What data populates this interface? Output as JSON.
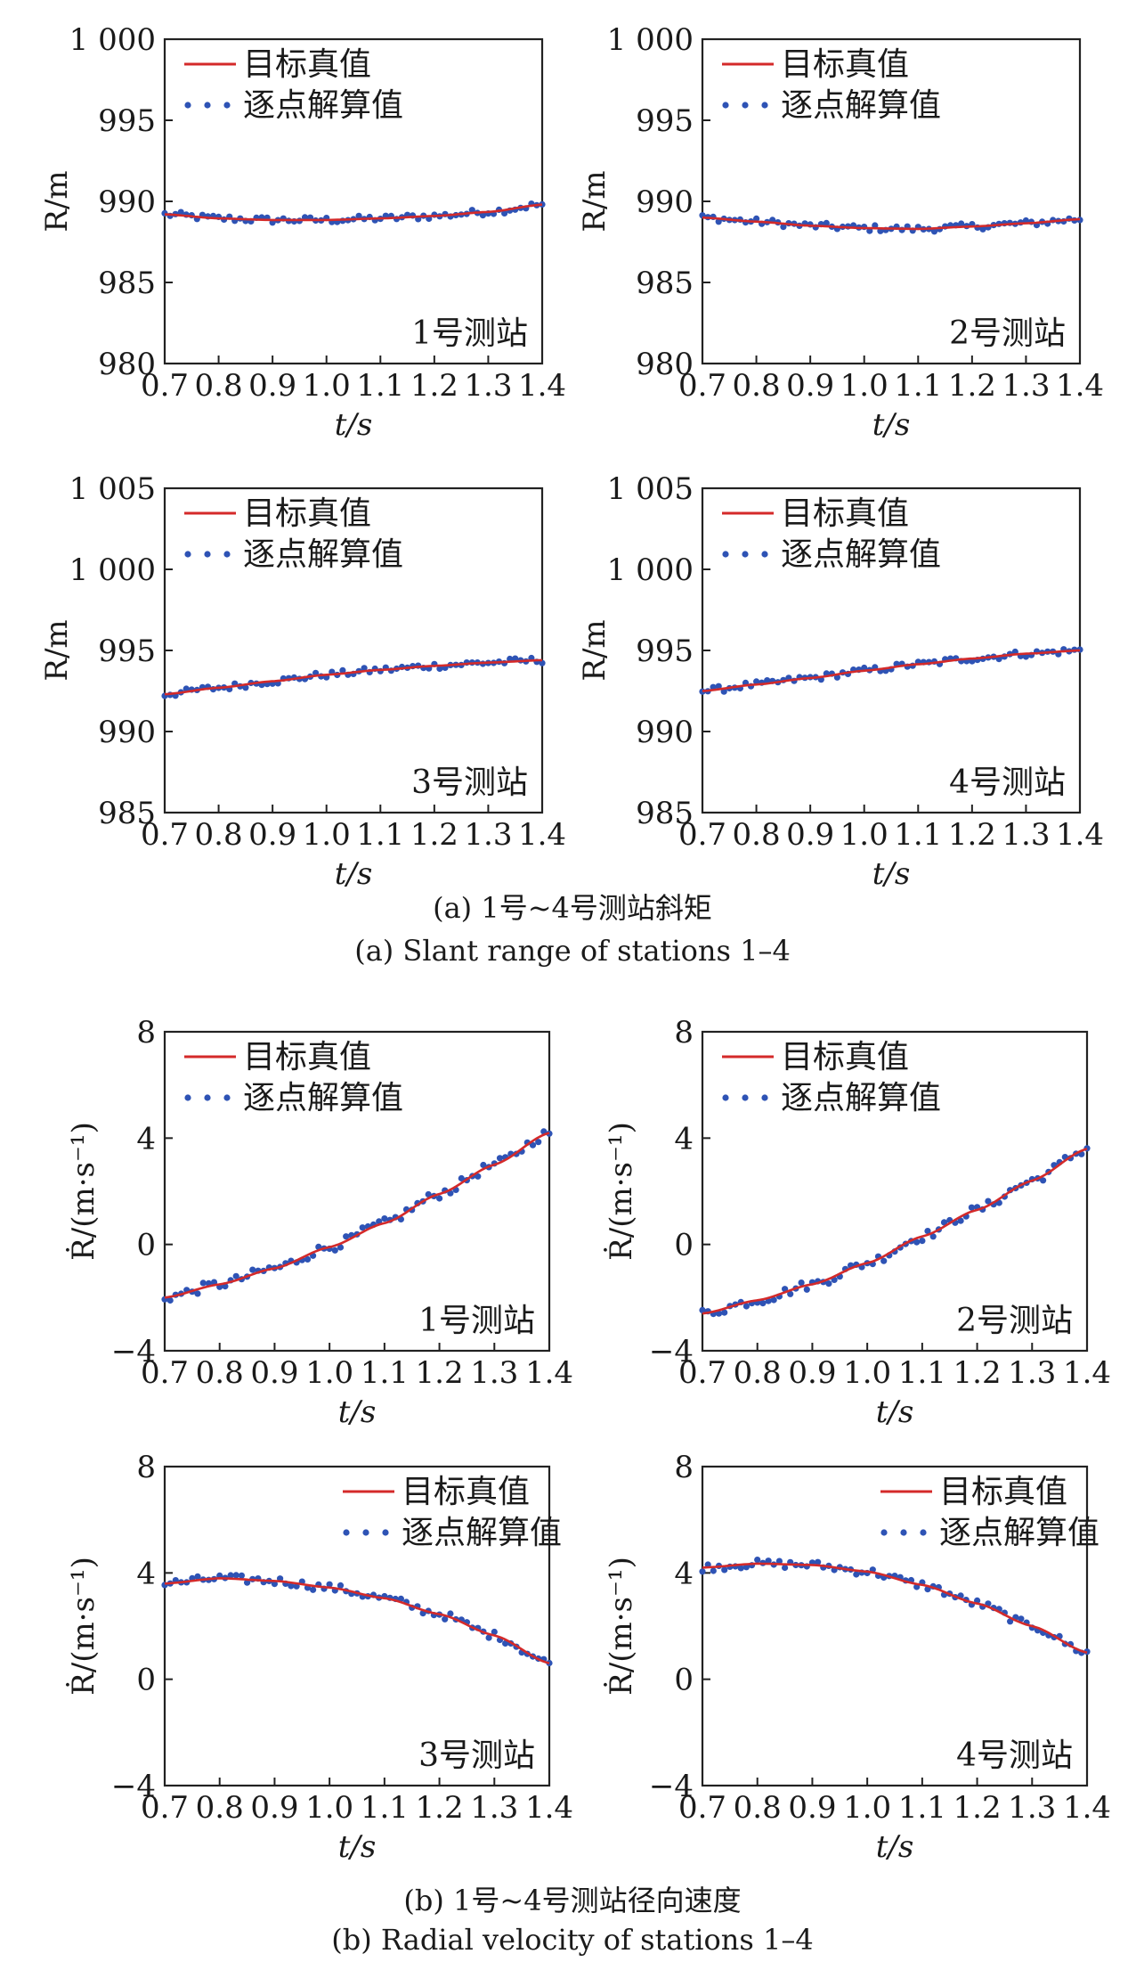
{
  "chart_data": [
    {
      "type": "line",
      "id": "range-s1",
      "station_label": "1号测站",
      "xlabel": "t/s",
      "ylabel": "R/m",
      "xlim": [
        0.7,
        1.4
      ],
      "ylim": [
        980,
        1000
      ],
      "x_ticks": [
        0.7,
        0.8,
        0.9,
        1.0,
        1.1,
        1.2,
        1.3,
        1.4
      ],
      "x_tick_labels": [
        "0.7",
        "0.8",
        "0.9",
        "1.0",
        "1.1",
        "1.2",
        "1.3",
        "1.4"
      ],
      "y_ticks": [
        980,
        985,
        990,
        995,
        1000
      ],
      "y_tick_labels": [
        "980",
        "985",
        "990",
        "995",
        "1 000"
      ],
      "legend": "top-left",
      "grid": false,
      "series": [
        {
          "name": "目标真值",
          "style": "line",
          "color": "#d42a2a",
          "x": [
            0.7,
            0.8,
            0.9,
            1.0,
            1.1,
            1.2,
            1.3,
            1.4
          ],
          "y": [
            989.2,
            988.95,
            988.85,
            988.85,
            988.95,
            989.1,
            989.35,
            989.8
          ]
        },
        {
          "name": "逐点解算值",
          "style": "dots",
          "color": "#2e53b5",
          "x": [
            0.7,
            0.8,
            0.9,
            1.0,
            1.1,
            1.2,
            1.3,
            1.4
          ],
          "y": [
            989.2,
            988.95,
            988.85,
            988.85,
            988.95,
            989.1,
            989.35,
            989.8
          ],
          "noise": 0.2
        }
      ]
    },
    {
      "type": "line",
      "id": "range-s2",
      "station_label": "2号测站",
      "xlabel": "t/s",
      "ylabel": "R/m",
      "xlim": [
        0.7,
        1.4
      ],
      "ylim": [
        980,
        1000
      ],
      "x_ticks": [
        0.7,
        0.8,
        0.9,
        1.0,
        1.1,
        1.2,
        1.3,
        1.4
      ],
      "x_tick_labels": [
        "0.7",
        "0.8",
        "0.9",
        "1.0",
        "1.1",
        "1.2",
        "1.3",
        "1.4"
      ],
      "y_ticks": [
        980,
        985,
        990,
        995,
        1000
      ],
      "y_tick_labels": [
        "980",
        "985",
        "990",
        "995",
        "1 000"
      ],
      "legend": "top-left",
      "grid": false,
      "series": [
        {
          "name": "目标真值",
          "style": "line",
          "color": "#d42a2a",
          "x": [
            0.7,
            0.8,
            0.9,
            1.0,
            1.1,
            1.2,
            1.3,
            1.4
          ],
          "y": [
            989.0,
            988.75,
            988.5,
            988.35,
            988.3,
            988.45,
            988.65,
            988.9
          ]
        },
        {
          "name": "逐点解算值",
          "style": "dots",
          "color": "#2e53b5",
          "x": [
            0.7,
            0.8,
            0.9,
            1.0,
            1.1,
            1.2,
            1.3,
            1.4
          ],
          "y": [
            989.0,
            988.75,
            988.5,
            988.35,
            988.3,
            988.45,
            988.65,
            988.9
          ],
          "noise": 0.2
        }
      ]
    },
    {
      "type": "line",
      "id": "range-s3",
      "station_label": "3号测站",
      "xlabel": "t/s",
      "ylabel": "R/m",
      "xlim": [
        0.7,
        1.4
      ],
      "ylim": [
        985,
        1005
      ],
      "x_ticks": [
        0.7,
        0.8,
        0.9,
        1.0,
        1.1,
        1.2,
        1.3,
        1.4
      ],
      "x_tick_labels": [
        "0.7",
        "0.8",
        "0.9",
        "1.0",
        "1.1",
        "1.2",
        "1.3",
        "1.4"
      ],
      "y_ticks": [
        985,
        990,
        995,
        1000,
        1005
      ],
      "y_tick_labels": [
        "985",
        "990",
        "995",
        "1 000",
        "1 005"
      ],
      "legend": "top-left",
      "grid": false,
      "series": [
        {
          "name": "目标真值",
          "style": "line",
          "color": "#d42a2a",
          "x": [
            0.7,
            0.8,
            0.9,
            1.0,
            1.1,
            1.2,
            1.3,
            1.4
          ],
          "y": [
            992.3,
            992.7,
            993.1,
            993.5,
            993.8,
            994.05,
            994.25,
            994.4
          ]
        },
        {
          "name": "逐点解算值",
          "style": "dots",
          "color": "#2e53b5",
          "x": [
            0.7,
            0.8,
            0.9,
            1.0,
            1.1,
            1.2,
            1.3,
            1.4
          ],
          "y": [
            992.3,
            992.7,
            993.1,
            993.5,
            993.8,
            994.05,
            994.25,
            994.4
          ],
          "noise": 0.2
        }
      ]
    },
    {
      "type": "line",
      "id": "range-s4",
      "station_label": "4号测站",
      "xlabel": "t/s",
      "ylabel": "R/m",
      "xlim": [
        0.7,
        1.4
      ],
      "ylim": [
        985,
        1005
      ],
      "x_ticks": [
        0.7,
        0.8,
        0.9,
        1.0,
        1.1,
        1.2,
        1.3,
        1.4
      ],
      "x_tick_labels": [
        "0.7",
        "0.8",
        "0.9",
        "1.0",
        "1.1",
        "1.2",
        "1.3",
        "1.4"
      ],
      "y_ticks": [
        985,
        990,
        995,
        1000,
        1005
      ],
      "y_tick_labels": [
        "985",
        "990",
        "995",
        "1 000",
        "1 005"
      ],
      "legend": "top-left",
      "grid": false,
      "series": [
        {
          "name": "目标真值",
          "style": "line",
          "color": "#d42a2a",
          "x": [
            0.7,
            0.8,
            0.9,
            1.0,
            1.1,
            1.2,
            1.3,
            1.4
          ],
          "y": [
            992.5,
            992.9,
            993.3,
            993.75,
            994.15,
            994.5,
            994.8,
            995.0
          ]
        },
        {
          "name": "逐点解算值",
          "style": "dots",
          "color": "#2e53b5",
          "x": [
            0.7,
            0.8,
            0.9,
            1.0,
            1.1,
            1.2,
            1.3,
            1.4
          ],
          "y": [
            992.5,
            992.9,
            993.3,
            993.75,
            994.15,
            994.5,
            994.8,
            995.0
          ],
          "noise": 0.2
        }
      ]
    },
    {
      "type": "line",
      "id": "velocity-s1",
      "station_label": "1号测站",
      "xlabel": "t/s",
      "ylabel": "Ṙ/(m·s⁻¹)",
      "xlim": [
        0.7,
        1.4
      ],
      "ylim": [
        -4,
        8
      ],
      "x_ticks": [
        0.7,
        0.8,
        0.9,
        1.0,
        1.1,
        1.2,
        1.3,
        1.4
      ],
      "x_tick_labels": [
        "0.7",
        "0.8",
        "0.9",
        "1.0",
        "1.1",
        "1.2",
        "1.3",
        "1.4"
      ],
      "y_ticks": [
        -4,
        0,
        4,
        8
      ],
      "y_tick_labels": [
        "−4",
        "0",
        "4",
        "8"
      ],
      "legend": "top-left",
      "grid": false,
      "series": [
        {
          "name": "目标真值",
          "style": "line",
          "color": "#d42a2a",
          "x": [
            0.7,
            0.8,
            0.9,
            1.0,
            1.1,
            1.2,
            1.3,
            1.4
          ],
          "y": [
            -2.0,
            -1.5,
            -0.9,
            -0.1,
            0.8,
            1.9,
            3.0,
            4.2
          ]
        },
        {
          "name": "逐点解算值",
          "style": "dots",
          "color": "#2e53b5",
          "x": [
            0.7,
            0.8,
            0.9,
            1.0,
            1.1,
            1.2,
            1.3,
            1.4
          ],
          "y": [
            -2.0,
            -1.5,
            -0.9,
            -0.1,
            0.8,
            1.9,
            3.0,
            4.2
          ],
          "noise": 0.18
        }
      ]
    },
    {
      "type": "line",
      "id": "velocity-s2",
      "station_label": "2号测站",
      "xlabel": "t/s",
      "ylabel": "Ṙ/(m·s⁻¹)",
      "xlim": [
        0.7,
        1.4
      ],
      "ylim": [
        -4,
        8
      ],
      "x_ticks": [
        0.7,
        0.8,
        0.9,
        1.0,
        1.1,
        1.2,
        1.3,
        1.4
      ],
      "x_tick_labels": [
        "0.7",
        "0.8",
        "0.9",
        "1.0",
        "1.1",
        "1.2",
        "1.3",
        "1.4"
      ],
      "y_ticks": [
        -4,
        0,
        4,
        8
      ],
      "y_tick_labels": [
        "−4",
        "0",
        "4",
        "8"
      ],
      "legend": "top-left",
      "grid": false,
      "series": [
        {
          "name": "目标真值",
          "style": "line",
          "color": "#d42a2a",
          "x": [
            0.7,
            0.8,
            0.9,
            1.0,
            1.1,
            1.2,
            1.3,
            1.4
          ],
          "y": [
            -2.6,
            -2.1,
            -1.5,
            -0.7,
            0.3,
            1.3,
            2.4,
            3.6
          ]
        },
        {
          "name": "逐点解算值",
          "style": "dots",
          "color": "#2e53b5",
          "x": [
            0.7,
            0.8,
            0.9,
            1.0,
            1.1,
            1.2,
            1.3,
            1.4
          ],
          "y": [
            -2.6,
            -2.1,
            -1.5,
            -0.7,
            0.3,
            1.3,
            2.4,
            3.6
          ],
          "noise": 0.18
        }
      ]
    },
    {
      "type": "line",
      "id": "velocity-s3",
      "station_label": "3号测站",
      "xlabel": "t/s",
      "ylabel": "Ṙ/(m·s⁻¹)",
      "xlim": [
        0.7,
        1.4
      ],
      "ylim": [
        -4,
        8
      ],
      "x_ticks": [
        0.7,
        0.8,
        0.9,
        1.0,
        1.1,
        1.2,
        1.3,
        1.4
      ],
      "x_tick_labels": [
        "0.7",
        "0.8",
        "0.9",
        "1.0",
        "1.1",
        "1.2",
        "1.3",
        "1.4"
      ],
      "y_ticks": [
        -4,
        0,
        4,
        8
      ],
      "y_tick_labels": [
        "−4",
        "0",
        "4",
        "8"
      ],
      "legend": "top-right",
      "grid": false,
      "series": [
        {
          "name": "目标真值",
          "style": "line",
          "color": "#d42a2a",
          "x": [
            0.7,
            0.8,
            0.9,
            1.0,
            1.1,
            1.2,
            1.3,
            1.4
          ],
          "y": [
            3.6,
            3.8,
            3.7,
            3.45,
            3.05,
            2.45,
            1.65,
            0.6
          ]
        },
        {
          "name": "逐点解算值",
          "style": "dots",
          "color": "#2e53b5",
          "x": [
            0.7,
            0.8,
            0.9,
            1.0,
            1.1,
            1.2,
            1.3,
            1.4
          ],
          "y": [
            3.6,
            3.8,
            3.7,
            3.45,
            3.05,
            2.45,
            1.65,
            0.6
          ],
          "noise": 0.15
        }
      ]
    },
    {
      "type": "line",
      "id": "velocity-s4",
      "station_label": "4号测站",
      "xlabel": "t/s",
      "ylabel": "Ṙ/(m·s⁻¹)",
      "xlim": [
        0.7,
        1.4
      ],
      "ylim": [
        -4,
        8
      ],
      "x_ticks": [
        0.7,
        0.8,
        0.9,
        1.0,
        1.1,
        1.2,
        1.3,
        1.4
      ],
      "x_tick_labels": [
        "0.7",
        "0.8",
        "0.9",
        "1.0",
        "1.1",
        "1.2",
        "1.3",
        "1.4"
      ],
      "y_ticks": [
        -4,
        0,
        4,
        8
      ],
      "y_tick_labels": [
        "−4",
        "0",
        "4",
        "8"
      ],
      "legend": "top-right",
      "grid": false,
      "series": [
        {
          "name": "目标真值",
          "style": "line",
          "color": "#d42a2a",
          "x": [
            0.7,
            0.8,
            0.9,
            1.0,
            1.1,
            1.2,
            1.3,
            1.4
          ],
          "y": [
            4.2,
            4.35,
            4.3,
            4.05,
            3.55,
            2.85,
            2.0,
            1.0
          ]
        },
        {
          "name": "逐点解算值",
          "style": "dots",
          "color": "#2e53b5",
          "x": [
            0.7,
            0.8,
            0.9,
            1.0,
            1.1,
            1.2,
            1.3,
            1.4
          ],
          "y": [
            4.2,
            4.35,
            4.3,
            4.05,
            3.55,
            2.85,
            2.0,
            1.0
          ],
          "noise": 0.15
        }
      ]
    }
  ],
  "captions": {
    "a_cn": "(a) 1号~4号测站斜矩",
    "a_en": "(a) Slant range of stations 1–4",
    "b_cn": "(b) 1号~4号测站径向速度",
    "b_en": "(b) Radial velocity of stations 1–4"
  },
  "colors": {
    "truth_line": "#d42a2a",
    "solution_dots": "#2e53b5",
    "axes": "#222222"
  }
}
